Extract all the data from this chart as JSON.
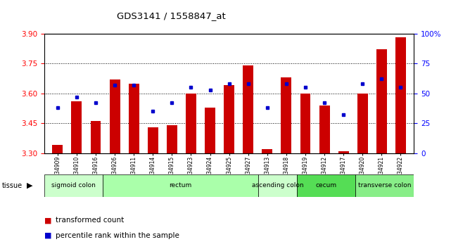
{
  "title": "GDS3141 / 1558847_at",
  "samples": [
    "GSM234909",
    "GSM234910",
    "GSM234916",
    "GSM234926",
    "GSM234911",
    "GSM234914",
    "GSM234915",
    "GSM234923",
    "GSM234924",
    "GSM234925",
    "GSM234927",
    "GSM234913",
    "GSM234918",
    "GSM234919",
    "GSM234912",
    "GSM234917",
    "GSM234920",
    "GSM234921",
    "GSM234922"
  ],
  "transformed_count": [
    3.34,
    3.56,
    3.46,
    3.67,
    3.65,
    3.43,
    3.44,
    3.6,
    3.53,
    3.64,
    3.74,
    3.32,
    3.68,
    3.6,
    3.54,
    3.31,
    3.6,
    3.82,
    3.88
  ],
  "percentile_rank": [
    38,
    47,
    42,
    57,
    57,
    35,
    42,
    55,
    53,
    58,
    58,
    38,
    58,
    55,
    42,
    32,
    58,
    62,
    55
  ],
  "ylim_left": [
    3.3,
    3.9
  ],
  "ylim_right": [
    0,
    100
  ],
  "yticks_left": [
    3.3,
    3.45,
    3.6,
    3.75,
    3.9
  ],
  "yticks_right": [
    0,
    25,
    50,
    75,
    100
  ],
  "bar_color": "#cc0000",
  "dot_color": "#0000cc",
  "tissue_groups": [
    {
      "label": "sigmoid colon",
      "start": 0,
      "end": 3,
      "color": "#ccffcc"
    },
    {
      "label": "rectum",
      "start": 3,
      "end": 11,
      "color": "#aaffaa"
    },
    {
      "label": "ascending colon",
      "start": 11,
      "end": 13,
      "color": "#ccffcc"
    },
    {
      "label": "cecum",
      "start": 13,
      "end": 16,
      "color": "#55dd55"
    },
    {
      "label": "transverse colon",
      "start": 16,
      "end": 19,
      "color": "#88ee88"
    }
  ],
  "legend_bar_label": "transformed count",
  "legend_dot_label": "percentile rank within the sample",
  "axhlines": [
    3.45,
    3.6,
    3.75
  ]
}
